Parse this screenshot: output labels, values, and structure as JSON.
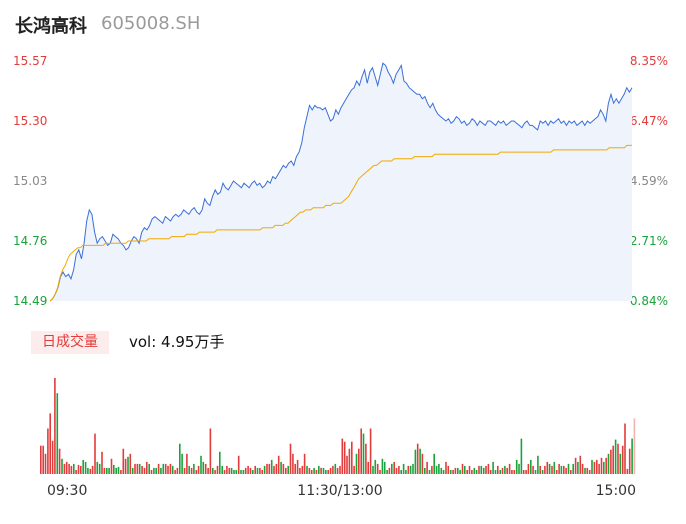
{
  "header": {
    "name": "长鸿高科",
    "code": "605008.SH"
  },
  "volume_panel": {
    "button_label": "日成交量",
    "vol_text": "vol: 4.95万手"
  },
  "chart_data": [
    {
      "type": "line",
      "title": "",
      "series": [
        {
          "name": "",
          "color": "#3a6fd8",
          "values": [
            14.49,
            14.5,
            14.52,
            14.55,
            14.6,
            14.62,
            14.6,
            14.61,
            14.59,
            14.63,
            14.7,
            14.72,
            14.68,
            14.75,
            14.85,
            14.9,
            14.88,
            14.8,
            14.75,
            14.77,
            14.78,
            14.76,
            14.74,
            14.75,
            14.79,
            14.78,
            14.77,
            14.75,
            14.74,
            14.72,
            14.73,
            14.76,
            14.78,
            14.77,
            14.75,
            14.8,
            14.82,
            14.81,
            14.83,
            14.86,
            14.87,
            14.86,
            14.85,
            14.84,
            14.87,
            14.86,
            14.85,
            14.87,
            14.88,
            14.87,
            14.88,
            14.9,
            14.89,
            14.88,
            14.9,
            14.91,
            14.89,
            14.88,
            14.9,
            14.95,
            14.93,
            14.92,
            14.96,
            14.99,
            14.97,
            14.98,
            15.02,
            15.0,
            14.99,
            15.01,
            15.03,
            15.02,
            15.01,
            15.0,
            15.02,
            15.01,
            15.0,
            15.02,
            15.03,
            15.01,
            15.02,
            15.0,
            15.01,
            15.03,
            15.02,
            15.05,
            15.04,
            15.06,
            15.08,
            15.1,
            15.09,
            15.11,
            15.12,
            15.1,
            15.14,
            15.16,
            15.2,
            15.27,
            15.32,
            15.37,
            15.35,
            15.37,
            15.36,
            15.36,
            15.35,
            15.36,
            15.33,
            15.3,
            15.31,
            15.35,
            15.33,
            15.36,
            15.38,
            15.4,
            15.42,
            15.44,
            15.45,
            15.48,
            15.46,
            15.5,
            15.53,
            15.47,
            15.52,
            15.54,
            15.5,
            15.46,
            15.51,
            15.56,
            15.55,
            15.52,
            15.5,
            15.47,
            15.51,
            15.53,
            15.55,
            15.48,
            15.47,
            15.45,
            15.44,
            15.43,
            15.42,
            15.42,
            15.4,
            15.41,
            15.38,
            15.36,
            15.38,
            15.35,
            15.33,
            15.32,
            15.31,
            15.3,
            15.31,
            15.29,
            15.3,
            15.32,
            15.31,
            15.29,
            15.3,
            15.28,
            15.29,
            15.31,
            15.3,
            15.28,
            15.3,
            15.29,
            15.28,
            15.3,
            15.3,
            15.29,
            15.28,
            15.3,
            15.29,
            15.3,
            15.28,
            15.29,
            15.3,
            15.3,
            15.29,
            15.28,
            15.27,
            15.29,
            15.3,
            15.28,
            15.28,
            15.27,
            15.26,
            15.3,
            15.29,
            15.3,
            15.28,
            15.3,
            15.29,
            15.3,
            15.31,
            15.29,
            15.3,
            15.28,
            15.3,
            15.29,
            15.3,
            15.28,
            15.29,
            15.3,
            15.28,
            15.3,
            15.29,
            15.3,
            15.31,
            15.32,
            15.35,
            15.33,
            15.3,
            15.38,
            15.42,
            15.38,
            15.4,
            15.38,
            15.4,
            15.42,
            15.45,
            15.43,
            15.45
          ]
        },
        {
          "name": "",
          "color": "#f2a900",
          "values": [
            14.49,
            14.5,
            14.52,
            14.55,
            14.6,
            14.63,
            14.65,
            14.68,
            14.7,
            14.71,
            14.72,
            14.73,
            14.73,
            14.74,
            14.74,
            14.74,
            14.74,
            14.74,
            14.74,
            14.74,
            14.74,
            14.74,
            14.75,
            14.75,
            14.75,
            14.75,
            14.75,
            14.75,
            14.75,
            14.75,
            14.75,
            14.76,
            14.76,
            14.76,
            14.76,
            14.76,
            14.76,
            14.76,
            14.76,
            14.77,
            14.77,
            14.77,
            14.77,
            14.77,
            14.77,
            14.77,
            14.77,
            14.77,
            14.78,
            14.78,
            14.78,
            14.78,
            14.78,
            14.78,
            14.79,
            14.79,
            14.79,
            14.79,
            14.79,
            14.8,
            14.8,
            14.8,
            14.8,
            14.8,
            14.8,
            14.8,
            14.81,
            14.81,
            14.81,
            14.81,
            14.81,
            14.81,
            14.81,
            14.81,
            14.81,
            14.81,
            14.81,
            14.81,
            14.81,
            14.81,
            14.81,
            14.81,
            14.81,
            14.81,
            14.82,
            14.82,
            14.82,
            14.82,
            14.82,
            14.83,
            14.83,
            14.83,
            14.83,
            14.84,
            14.84,
            14.85,
            14.86,
            14.87,
            14.88,
            14.89,
            14.89,
            14.9,
            14.9,
            14.9,
            14.91,
            14.91,
            14.91,
            14.91,
            14.91,
            14.92,
            14.92,
            14.92,
            14.93,
            14.93,
            14.93,
            14.93,
            14.94,
            14.95,
            14.96,
            14.98,
            15.0,
            15.02,
            15.04,
            15.05,
            15.06,
            15.07,
            15.08,
            15.09,
            15.1,
            15.1,
            15.11,
            15.12,
            15.12,
            15.12,
            15.12,
            15.12,
            15.13,
            15.13,
            15.13,
            15.13,
            15.13,
            15.13,
            15.13,
            15.13,
            15.14,
            15.14,
            15.14,
            15.14,
            15.14,
            15.14,
            15.14,
            15.14,
            15.15,
            15.15,
            15.15,
            15.15,
            15.15,
            15.15,
            15.15,
            15.15,
            15.15,
            15.15,
            15.15,
            15.15,
            15.15,
            15.15,
            15.15,
            15.15,
            15.15,
            15.15,
            15.15,
            15.15,
            15.15,
            15.15,
            15.15,
            15.15,
            15.15,
            15.15,
            15.16,
            15.16,
            15.16,
            15.16,
            15.16,
            15.16,
            15.16,
            15.16,
            15.16,
            15.16,
            15.16,
            15.16,
            15.16,
            15.16,
            15.16,
            15.16,
            15.16,
            15.16,
            15.16,
            15.16,
            15.16,
            15.17,
            15.17,
            15.17,
            15.17,
            15.17,
            15.17,
            15.17,
            15.17,
            15.17,
            15.17,
            15.17,
            15.17,
            15.17,
            15.17,
            15.17,
            15.17,
            15.17,
            15.17,
            15.17,
            15.17,
            15.17,
            15.17,
            15.18,
            15.18,
            15.18,
            15.18,
            15.18,
            15.18,
            15.18,
            15.19,
            15.19,
            15.19
          ]
        }
      ],
      "ylim": [
        14.49,
        15.57
      ],
      "yticks_left": [
        "15.57",
        "15.30",
        "15.03",
        "14.76",
        "14.49"
      ],
      "yticks_right": [
        "8.35%",
        "6.47%",
        "4.59%",
        "2.71%",
        "0.84%"
      ],
      "right_tick_colors": [
        "#e23b3b",
        "#e23b3b",
        "#888888",
        "#1aa33a",
        "#1aa33a"
      ],
      "left_tick_colors": [
        "#e23b3b",
        "#e23b3b",
        "#888888",
        "#1aa33a",
        "#1aa33a"
      ],
      "grid": false
    },
    {
      "type": "bar",
      "series": [
        {
          "name": "",
          "up_color": "#e23b3b",
          "down_color": "#1aa33a",
          "values": [
            28,
            28,
            20,
            45,
            60,
            33,
            95,
            80,
            25,
            15,
            10,
            12,
            10,
            8,
            10,
            4,
            9,
            8,
            14,
            12,
            6,
            5,
            8,
            40,
            12,
            10,
            22,
            6,
            6,
            6,
            15,
            9,
            6,
            7,
            4,
            25,
            15,
            17,
            20,
            6,
            10,
            10,
            10,
            8,
            6,
            12,
            10,
            4,
            6,
            6,
            10,
            6,
            10,
            10,
            8,
            10,
            8,
            4,
            6,
            30,
            20,
            6,
            20,
            8,
            6,
            10,
            4,
            8,
            18,
            12,
            10,
            6,
            45,
            6,
            4,
            8,
            22,
            8,
            4,
            8,
            6,
            6,
            4,
            4,
            18,
            4,
            4,
            6,
            8,
            6,
            4,
            8,
            6,
            6,
            4,
            8,
            10,
            10,
            14,
            8,
            10,
            18,
            12,
            10,
            6,
            8,
            30,
            20,
            10,
            14,
            6,
            8,
            20,
            8,
            6,
            4,
            6,
            4,
            8,
            6,
            6,
            4,
            4,
            6,
            8,
            10,
            6,
            8,
            35,
            32,
            18,
            25,
            32,
            8,
            20,
            25,
            45,
            40,
            30,
            12,
            45,
            8,
            14,
            10,
            4,
            15,
            12,
            4,
            6,
            10,
            12,
            6,
            8,
            4,
            10,
            4,
            8,
            8,
            10,
            24,
            30,
            25,
            20,
            6,
            12,
            4,
            8,
            20,
            8,
            10,
            6,
            4,
            12,
            8,
            4,
            4,
            6,
            6,
            4,
            10,
            8,
            4,
            8,
            4,
            6,
            4,
            8,
            8,
            6,
            8,
            10,
            4,
            12,
            4,
            8,
            4,
            6,
            8,
            6,
            10,
            4,
            4,
            14,
            10,
            35,
            4,
            4,
            10,
            14,
            8,
            4,
            18,
            8,
            4,
            8,
            12,
            10,
            8,
            12,
            4,
            10,
            8,
            8,
            6,
            10,
            4,
            10,
            16,
            12,
            18,
            10,
            6,
            6,
            4,
            14,
            12,
            14,
            10,
            16,
            12,
            16,
            20,
            24,
            28,
            34,
            30,
            20,
            28,
            50,
            5,
            25,
            35,
            55
          ]
        }
      ]
    }
  ],
  "xaxis_labels": [
    "09:30",
    "11:30/13:00",
    "15:00"
  ]
}
